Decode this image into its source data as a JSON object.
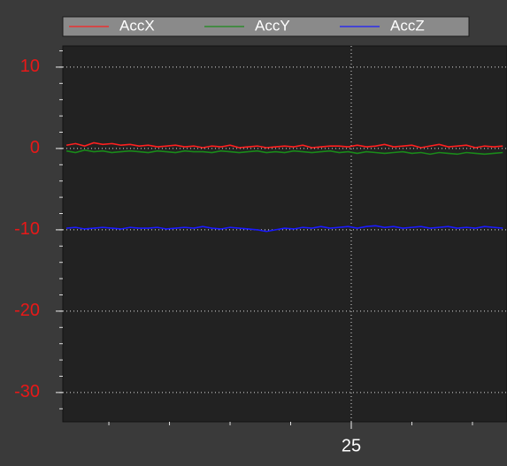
{
  "chart_data": {
    "type": "line",
    "x": [
      1.5,
      2.25,
      3,
      3.75,
      4.5,
      5.25,
      6,
      6.75,
      7.5,
      8.25,
      9,
      9.75,
      10.5,
      11.25,
      12,
      12.75,
      13.5,
      14.25,
      15,
      15.75,
      16.5,
      17.25,
      18,
      18.75,
      19.5,
      20.25,
      21,
      21.75,
      22.5,
      23.25,
      24,
      24.75,
      25.5,
      26.25,
      27,
      27.75,
      28.5,
      29.25,
      30,
      30.75,
      31.5,
      32.25,
      33,
      33.75,
      34.5,
      35.25,
      36,
      36.75,
      37.5
    ],
    "series": [
      {
        "name": "AccX",
        "color": "#ff2020",
        "values": [
          0.4,
          0.6,
          0.3,
          0.7,
          0.5,
          0.6,
          0.4,
          0.5,
          0.3,
          0.4,
          0.2,
          0.3,
          0.4,
          0.2,
          0.3,
          0.1,
          0.3,
          0.2,
          0.4,
          0.1,
          0.2,
          0.3,
          0.1,
          0.2,
          0.3,
          0.2,
          0.4,
          0.1,
          0.2,
          0.3,
          0.3,
          0.2,
          0.4,
          0.2,
          0.3,
          0.5,
          0.2,
          0.3,
          0.4,
          0.1,
          0.3,
          0.5,
          0.2,
          0.3,
          0.4,
          0.1,
          0.3,
          0.2,
          0.3
        ]
      },
      {
        "name": "AccY",
        "color": "#1a8a1a",
        "values": [
          -0.3,
          -0.5,
          -0.2,
          -0.4,
          -0.3,
          -0.5,
          -0.4,
          -0.3,
          -0.4,
          -0.5,
          -0.3,
          -0.4,
          -0.5,
          -0.3,
          -0.4,
          -0.4,
          -0.5,
          -0.3,
          -0.4,
          -0.5,
          -0.4,
          -0.3,
          -0.5,
          -0.4,
          -0.5,
          -0.3,
          -0.4,
          -0.5,
          -0.4,
          -0.3,
          -0.5,
          -0.4,
          -0.6,
          -0.4,
          -0.5,
          -0.6,
          -0.5,
          -0.4,
          -0.6,
          -0.5,
          -0.7,
          -0.5,
          -0.6,
          -0.7,
          -0.5,
          -0.6,
          -0.7,
          -0.6,
          -0.5
        ]
      },
      {
        "name": "AccZ",
        "color": "#1a1aff",
        "values": [
          -9.8,
          -9.7,
          -9.9,
          -9.8,
          -9.7,
          -9.8,
          -9.9,
          -9.7,
          -9.8,
          -9.8,
          -9.7,
          -9.9,
          -9.8,
          -9.7,
          -9.8,
          -9.6,
          -9.8,
          -9.9,
          -9.7,
          -9.8,
          -9.9,
          -10.0,
          -10.2,
          -10.0,
          -9.8,
          -9.9,
          -9.7,
          -9.8,
          -9.6,
          -9.8,
          -9.7,
          -9.6,
          -9.8,
          -9.6,
          -9.5,
          -9.7,
          -9.6,
          -9.8,
          -9.7,
          -9.6,
          -9.8,
          -9.7,
          -9.6,
          -9.8,
          -9.7,
          -9.8,
          -9.6,
          -9.7,
          -9.8
        ]
      }
    ],
    "xlim": [
      1.2,
      37.85
    ],
    "xticks": [
      25
    ],
    "x_minor_step": 5,
    "ylim": [
      -33.6,
      12.6
    ],
    "yticks": [
      10,
      0,
      -10,
      -20,
      -30
    ],
    "y_minor_step": 2,
    "grid": true
  }
}
